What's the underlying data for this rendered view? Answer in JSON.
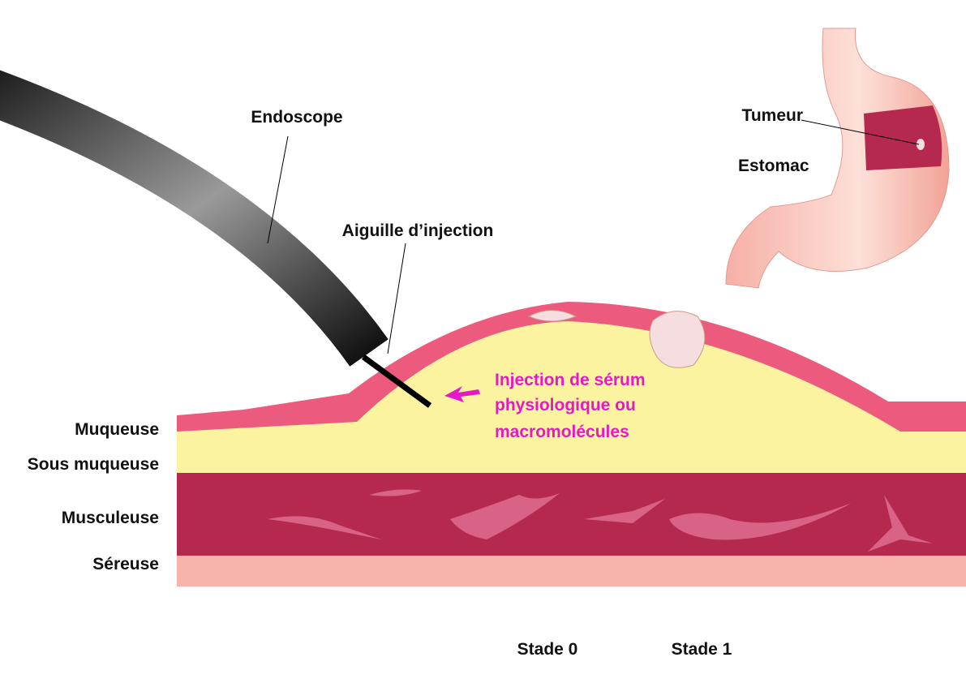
{
  "labels": {
    "endoscope": "Endoscope",
    "needle": "Aiguille d’injection",
    "tumor": "Tumeur",
    "stomach": "Estomac",
    "injection": [
      "Injection de sérum",
      "physiologique ou",
      "macromolécules"
    ]
  },
  "layers": [
    "Muqueuse",
    "Sous muqueuse",
    "Musculeuse",
    "Séreuse"
  ],
  "stages": [
    "Stade 0",
    "Stade 1"
  ]
}
